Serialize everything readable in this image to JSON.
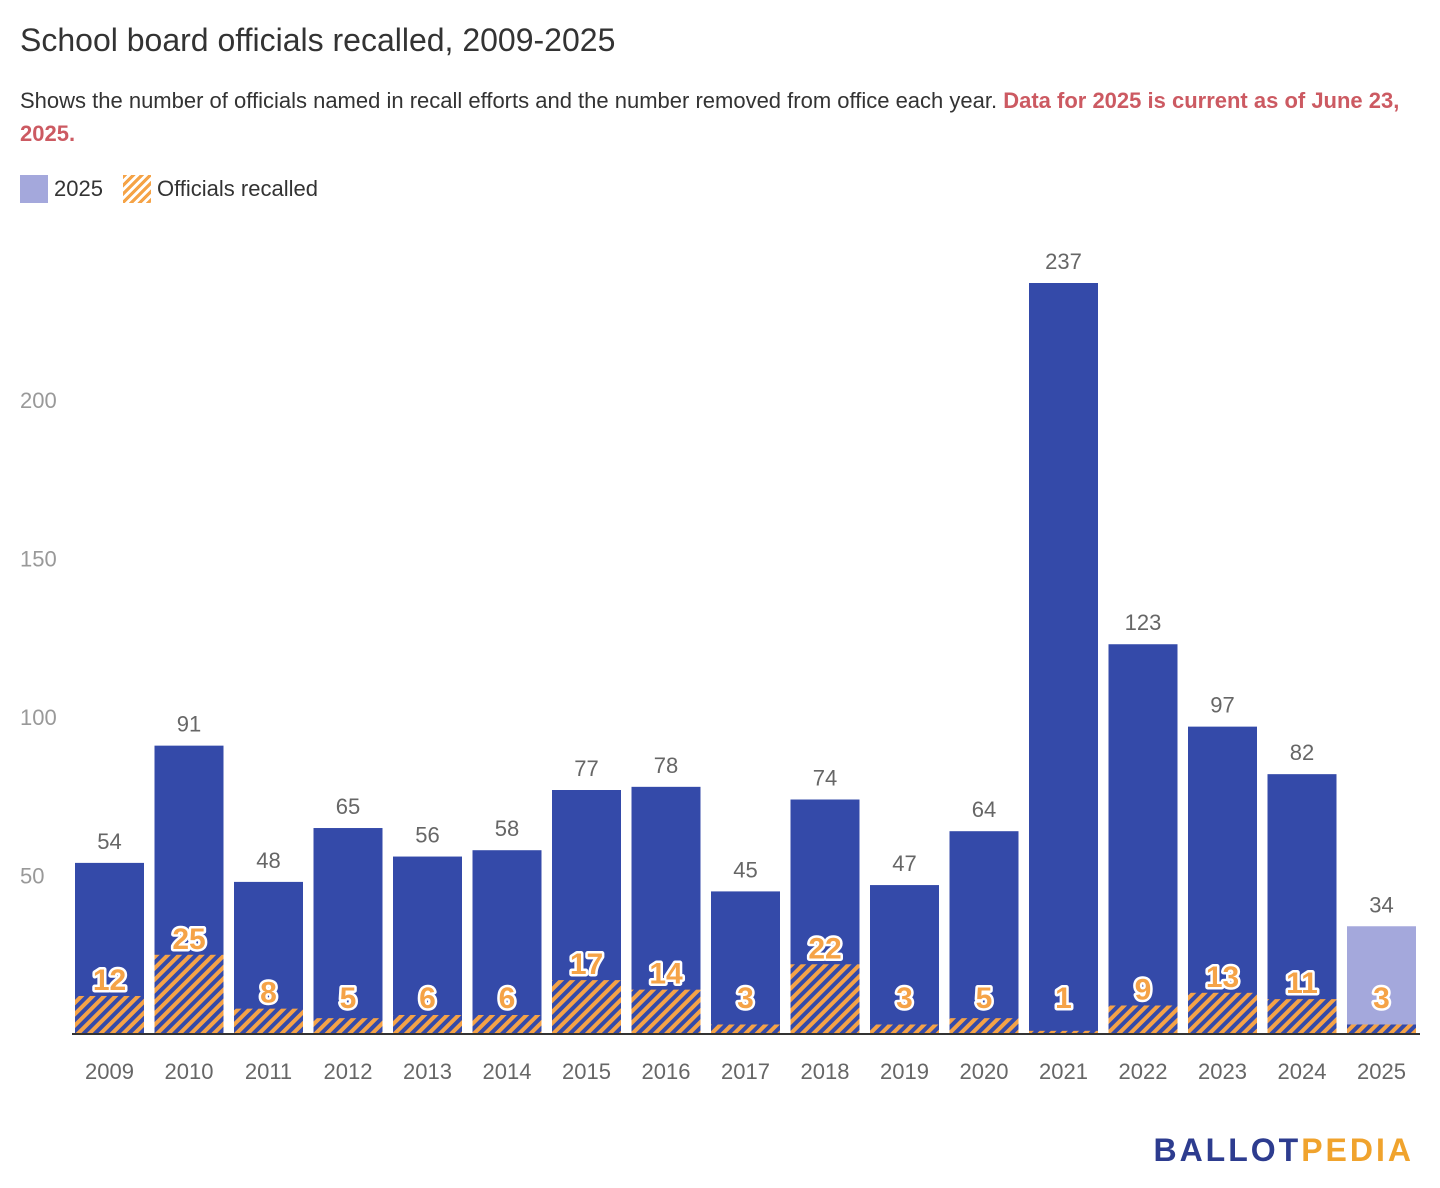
{
  "title": "School board officials recalled, 2009-2025",
  "subtitle": "Shows the number of officials named in recall efforts and the number removed from office each year. ",
  "subtitle_note": "Data for 2025 is current as of June 23, 2025.",
  "legend": [
    {
      "label": "2025",
      "color": "#a4a8dc"
    },
    {
      "label": "Officials recalled",
      "color": "#f5a347",
      "pattern": "hatch"
    }
  ],
  "logo": {
    "part1": "BALLOT",
    "part2": "PEDIA"
  },
  "colors": {
    "bar": "#344aa9",
    "bar_2025": "#a4a8dc",
    "recalled": "#f5a347",
    "value_label": "#666666",
    "axis_label": "#999999"
  },
  "chart_data": {
    "type": "bar",
    "categories": [
      "2009",
      "2010",
      "2011",
      "2012",
      "2013",
      "2014",
      "2015",
      "2016",
      "2017",
      "2018",
      "2019",
      "2020",
      "2021",
      "2022",
      "2023",
      "2024",
      "2025"
    ],
    "series": [
      {
        "name": "",
        "values": [
          54,
          91,
          48,
          65,
          56,
          58,
          77,
          78,
          45,
          74,
          47,
          64,
          237,
          123,
          97,
          82,
          34
        ]
      },
      {
        "name": "Officials recalled",
        "values": [
          12,
          25,
          8,
          5,
          6,
          6,
          17,
          14,
          3,
          22,
          3,
          5,
          1,
          9,
          13,
          11,
          3
        ]
      }
    ],
    "yticks": [
      50,
      100,
      150,
      200
    ],
    "ylim": [
      0,
      237
    ],
    "highlight_category": "2025",
    "grid": false
  }
}
